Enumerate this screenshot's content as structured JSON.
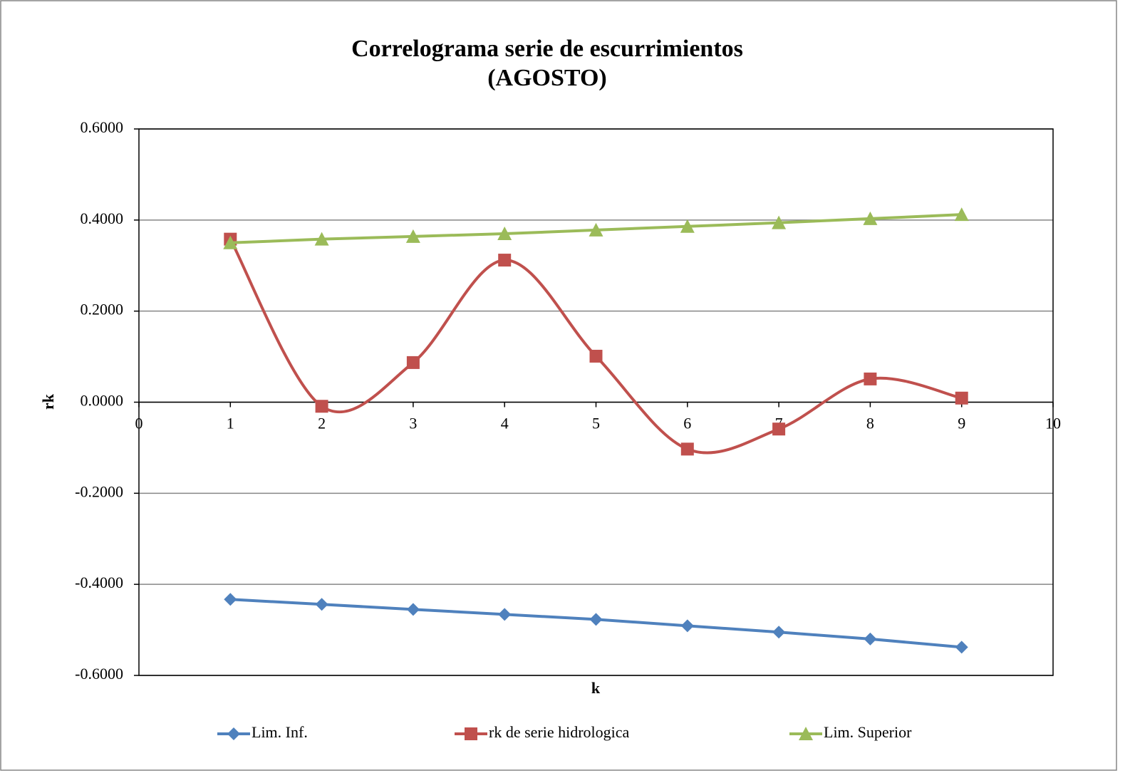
{
  "chart_data": {
    "type": "line",
    "title": [
      "Correlograma serie de escurrimientos",
      "(AGOSTO)"
    ],
    "x_label": "k",
    "y_label": "rk",
    "x": [
      1,
      2,
      3,
      4,
      5,
      6,
      7,
      8,
      9
    ],
    "series": [
      {
        "name": "Lim. Inf.",
        "color": "#4f81bd",
        "marker": "diamond",
        "smooth": false,
        "values": [
          -0.433,
          -0.444,
          -0.455,
          -0.466,
          -0.477,
          -0.491,
          -0.505,
          -0.52,
          -0.538
        ]
      },
      {
        "name": "rk de serie hidrologica",
        "color": "#c0504d",
        "marker": "square",
        "smooth": true,
        "values": [
          0.358,
          -0.009,
          0.087,
          0.312,
          0.101,
          -0.103,
          -0.059,
          0.051,
          0.009
        ]
      },
      {
        "name": "Lim. Superior",
        "color": "#9bbb59",
        "marker": "triangle",
        "smooth": false,
        "values": [
          0.35,
          0.358,
          0.364,
          0.37,
          0.378,
          0.386,
          0.394,
          0.403,
          0.412
        ]
      }
    ],
    "xlim": [
      0,
      10
    ],
    "xticks": [
      0,
      1,
      2,
      3,
      4,
      5,
      6,
      7,
      8,
      9,
      10
    ],
    "ylim": [
      -0.6,
      0.6
    ],
    "yticks": [
      {
        "value": -0.6,
        "label": "-0.6000"
      },
      {
        "value": -0.4,
        "label": "-0.4000"
      },
      {
        "value": -0.2,
        "label": "-0.2000"
      },
      {
        "value": 0,
        "label": "0.0000"
      },
      {
        "value": 0.2,
        "label": "0.2000"
      },
      {
        "value": 0.4,
        "label": "0.4000"
      },
      {
        "value": 0.6,
        "label": "0.6000"
      }
    ],
    "grid": true,
    "legend": "bottom"
  }
}
